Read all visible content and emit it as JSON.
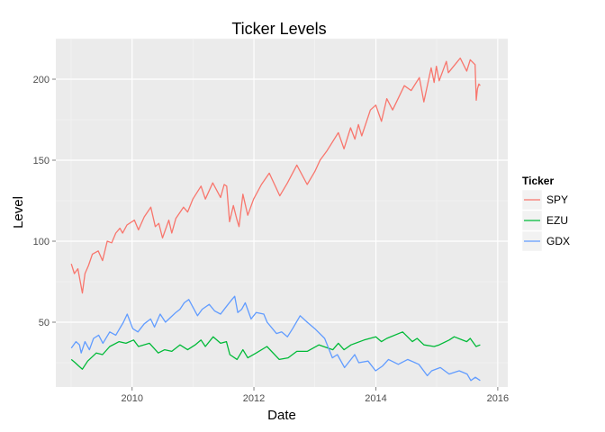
{
  "chart_data": {
    "type": "line",
    "title": "Ticker Levels",
    "xlabel": "Date",
    "ylabel": "Level",
    "x_type": "date",
    "xlim": [
      "2008-10-01",
      "2016-03-01"
    ],
    "ylim": [
      10,
      225
    ],
    "x_ticks": [
      {
        "value": "2010-01-01",
        "label": "2010"
      },
      {
        "value": "2012-01-01",
        "label": "2012"
      },
      {
        "value": "2014-01-01",
        "label": "2014"
      },
      {
        "value": "2016-01-01",
        "label": "2016"
      }
    ],
    "y_ticks": [
      50,
      100,
      150,
      200
    ],
    "grid": true,
    "legend": {
      "title": "Ticker",
      "position": "right"
    },
    "series": [
      {
        "name": "SPY",
        "color": "#F8766D",
        "points": [
          [
            "2009-01-02",
            86
          ],
          [
            "2009-01-20",
            80
          ],
          [
            "2009-02-10",
            83
          ],
          [
            "2009-03-09",
            68
          ],
          [
            "2009-03-25",
            80
          ],
          [
            "2009-04-15",
            85
          ],
          [
            "2009-05-08",
            92
          ],
          [
            "2009-06-12",
            94
          ],
          [
            "2009-07-08",
            88
          ],
          [
            "2009-08-05",
            100
          ],
          [
            "2009-09-01",
            99
          ],
          [
            "2009-09-25",
            105
          ],
          [
            "2009-10-20",
            108
          ],
          [
            "2009-11-05",
            105
          ],
          [
            "2009-12-01",
            110
          ],
          [
            "2010-01-15",
            113
          ],
          [
            "2010-02-08",
            107
          ],
          [
            "2010-03-15",
            115
          ],
          [
            "2010-04-23",
            121
          ],
          [
            "2010-05-20",
            109
          ],
          [
            "2010-06-10",
            111
          ],
          [
            "2010-07-02",
            102
          ],
          [
            "2010-08-09",
            113
          ],
          [
            "2010-08-27",
            105
          ],
          [
            "2010-09-20",
            114
          ],
          [
            "2010-11-05",
            121
          ],
          [
            "2010-11-30",
            118
          ],
          [
            "2010-12-31",
            126
          ],
          [
            "2011-02-18",
            134
          ],
          [
            "2011-03-16",
            126
          ],
          [
            "2011-04-29",
            136
          ],
          [
            "2011-06-15",
            127
          ],
          [
            "2011-07-07",
            135
          ],
          [
            "2011-07-22",
            134
          ],
          [
            "2011-08-08",
            112
          ],
          [
            "2011-08-31",
            122
          ],
          [
            "2011-09-22",
            113
          ],
          [
            "2011-10-04",
            109
          ],
          [
            "2011-10-27",
            129
          ],
          [
            "2011-11-25",
            116
          ],
          [
            "2011-12-30",
            126
          ],
          [
            "2012-02-15",
            135
          ],
          [
            "2012-04-02",
            142
          ],
          [
            "2012-06-04",
            128
          ],
          [
            "2012-07-20",
            136
          ],
          [
            "2012-09-14",
            147
          ],
          [
            "2012-11-15",
            135
          ],
          [
            "2012-12-31",
            143
          ],
          [
            "2013-01-31",
            150
          ],
          [
            "2013-03-15",
            156
          ],
          [
            "2013-05-21",
            167
          ],
          [
            "2013-06-24",
            157
          ],
          [
            "2013-08-02",
            170
          ],
          [
            "2013-08-28",
            163
          ],
          [
            "2013-09-18",
            172
          ],
          [
            "2013-10-08",
            165
          ],
          [
            "2013-11-29",
            181
          ],
          [
            "2013-12-31",
            184
          ],
          [
            "2014-02-03",
            174
          ],
          [
            "2014-03-07",
            188
          ],
          [
            "2014-04-11",
            181
          ],
          [
            "2014-06-20",
            196
          ],
          [
            "2014-07-31",
            193
          ],
          [
            "2014-09-18",
            201
          ],
          [
            "2014-10-15",
            186
          ],
          [
            "2014-11-28",
            207
          ],
          [
            "2014-12-16",
            198
          ],
          [
            "2014-12-29",
            208
          ],
          [
            "2015-01-15",
            199
          ],
          [
            "2015-02-27",
            211
          ],
          [
            "2015-03-11",
            204
          ],
          [
            "2015-05-21",
            213
          ],
          [
            "2015-06-29",
            205
          ],
          [
            "2015-07-20",
            212
          ],
          [
            "2015-08-18",
            209
          ],
          [
            "2015-08-25",
            187
          ],
          [
            "2015-09-01",
            194
          ],
          [
            "2015-09-10",
            197
          ],
          [
            "2015-09-18",
            196
          ]
        ]
      },
      {
        "name": "EZU",
        "color": "#00BA38",
        "points": [
          [
            "2009-01-02",
            27
          ],
          [
            "2009-01-25",
            25
          ],
          [
            "2009-02-15",
            23
          ],
          [
            "2009-03-09",
            21
          ],
          [
            "2009-04-10",
            26
          ],
          [
            "2009-06-01",
            31
          ],
          [
            "2009-07-08",
            30
          ],
          [
            "2009-08-20",
            35
          ],
          [
            "2009-10-15",
            38
          ],
          [
            "2009-11-25",
            37
          ],
          [
            "2010-01-10",
            39
          ],
          [
            "2010-02-08",
            35
          ],
          [
            "2010-04-15",
            37
          ],
          [
            "2010-06-07",
            31
          ],
          [
            "2010-07-15",
            33
          ],
          [
            "2010-08-27",
            32
          ],
          [
            "2010-10-15",
            36
          ],
          [
            "2010-11-30",
            33
          ],
          [
            "2011-01-14",
            36
          ],
          [
            "2011-02-18",
            39
          ],
          [
            "2011-03-16",
            35
          ],
          [
            "2011-05-02",
            41
          ],
          [
            "2011-06-15",
            37
          ],
          [
            "2011-07-20",
            38
          ],
          [
            "2011-08-10",
            30
          ],
          [
            "2011-09-22",
            27
          ],
          [
            "2011-10-27",
            33
          ],
          [
            "2011-11-25",
            28
          ],
          [
            "2012-01-15",
            31
          ],
          [
            "2012-03-19",
            35
          ],
          [
            "2012-06-01",
            27
          ],
          [
            "2012-07-24",
            28
          ],
          [
            "2012-09-14",
            32
          ],
          [
            "2012-11-15",
            32
          ],
          [
            "2013-01-25",
            36
          ],
          [
            "2013-04-18",
            33
          ],
          [
            "2013-05-21",
            37
          ],
          [
            "2013-06-24",
            33
          ],
          [
            "2013-08-05",
            36
          ],
          [
            "2013-10-22",
            39
          ],
          [
            "2013-12-31",
            41
          ],
          [
            "2014-02-03",
            38
          ],
          [
            "2014-03-07",
            40
          ],
          [
            "2014-06-10",
            44
          ],
          [
            "2014-08-07",
            38
          ],
          [
            "2014-09-05",
            40
          ],
          [
            "2014-10-16",
            36
          ],
          [
            "2014-12-16",
            35
          ],
          [
            "2015-01-15",
            36
          ],
          [
            "2015-03-16",
            39
          ],
          [
            "2015-04-15",
            41
          ],
          [
            "2015-06-29",
            38
          ],
          [
            "2015-07-20",
            40
          ],
          [
            "2015-08-24",
            35
          ],
          [
            "2015-09-18",
            36
          ]
        ]
      },
      {
        "name": "GDX",
        "color": "#619CFF",
        "points": [
          [
            "2009-01-02",
            34
          ],
          [
            "2009-01-30",
            38
          ],
          [
            "2009-02-20",
            36
          ],
          [
            "2009-03-02",
            31
          ],
          [
            "2009-03-25",
            38
          ],
          [
            "2009-04-20",
            33
          ],
          [
            "2009-05-15",
            40
          ],
          [
            "2009-06-15",
            42
          ],
          [
            "2009-07-10",
            37
          ],
          [
            "2009-08-20",
            44
          ],
          [
            "2009-09-25",
            42
          ],
          [
            "2009-11-10",
            50
          ],
          [
            "2009-12-03",
            55
          ],
          [
            "2010-01-05",
            46
          ],
          [
            "2010-02-05",
            44
          ],
          [
            "2010-03-15",
            49
          ],
          [
            "2010-04-22",
            52
          ],
          [
            "2010-05-15",
            47
          ],
          [
            "2010-06-18",
            55
          ],
          [
            "2010-07-20",
            50
          ],
          [
            "2010-08-20",
            53
          ],
          [
            "2010-09-20",
            56
          ],
          [
            "2010-10-15",
            58
          ],
          [
            "2010-11-10",
            62
          ],
          [
            "2010-12-07",
            64
          ],
          [
            "2011-01-28",
            54
          ],
          [
            "2011-02-25",
            58
          ],
          [
            "2011-04-08",
            61
          ],
          [
            "2011-05-10",
            57
          ],
          [
            "2011-06-15",
            55
          ],
          [
            "2011-07-15",
            59
          ],
          [
            "2011-08-22",
            64
          ],
          [
            "2011-09-08",
            66
          ],
          [
            "2011-09-26",
            56
          ],
          [
            "2011-10-20",
            58
          ],
          [
            "2011-11-10",
            62
          ],
          [
            "2011-12-15",
            52
          ],
          [
            "2012-01-15",
            56
          ],
          [
            "2012-02-29",
            55
          ],
          [
            "2012-03-20",
            50
          ],
          [
            "2012-05-15",
            43
          ],
          [
            "2012-06-15",
            44
          ],
          [
            "2012-07-20",
            41
          ],
          [
            "2012-08-20",
            46
          ],
          [
            "2012-10-04",
            54
          ],
          [
            "2012-11-15",
            50
          ],
          [
            "2012-12-31",
            46
          ],
          [
            "2013-02-28",
            40
          ],
          [
            "2013-04-15",
            28
          ],
          [
            "2013-05-15",
            30
          ],
          [
            "2013-06-27",
            22
          ],
          [
            "2013-08-27",
            30
          ],
          [
            "2013-09-20",
            25
          ],
          [
            "2013-11-15",
            26
          ],
          [
            "2013-12-30",
            20
          ],
          [
            "2014-02-10",
            23
          ],
          [
            "2014-03-17",
            27
          ],
          [
            "2014-05-15",
            24
          ],
          [
            "2014-07-10",
            27
          ],
          [
            "2014-09-15",
            24
          ],
          [
            "2014-11-05",
            17
          ],
          [
            "2014-12-01",
            20
          ],
          [
            "2015-01-22",
            22
          ],
          [
            "2015-03-16",
            18
          ],
          [
            "2015-05-15",
            20
          ],
          [
            "2015-07-01",
            18
          ],
          [
            "2015-07-24",
            14
          ],
          [
            "2015-08-20",
            16
          ],
          [
            "2015-09-18",
            14
          ]
        ]
      }
    ]
  }
}
